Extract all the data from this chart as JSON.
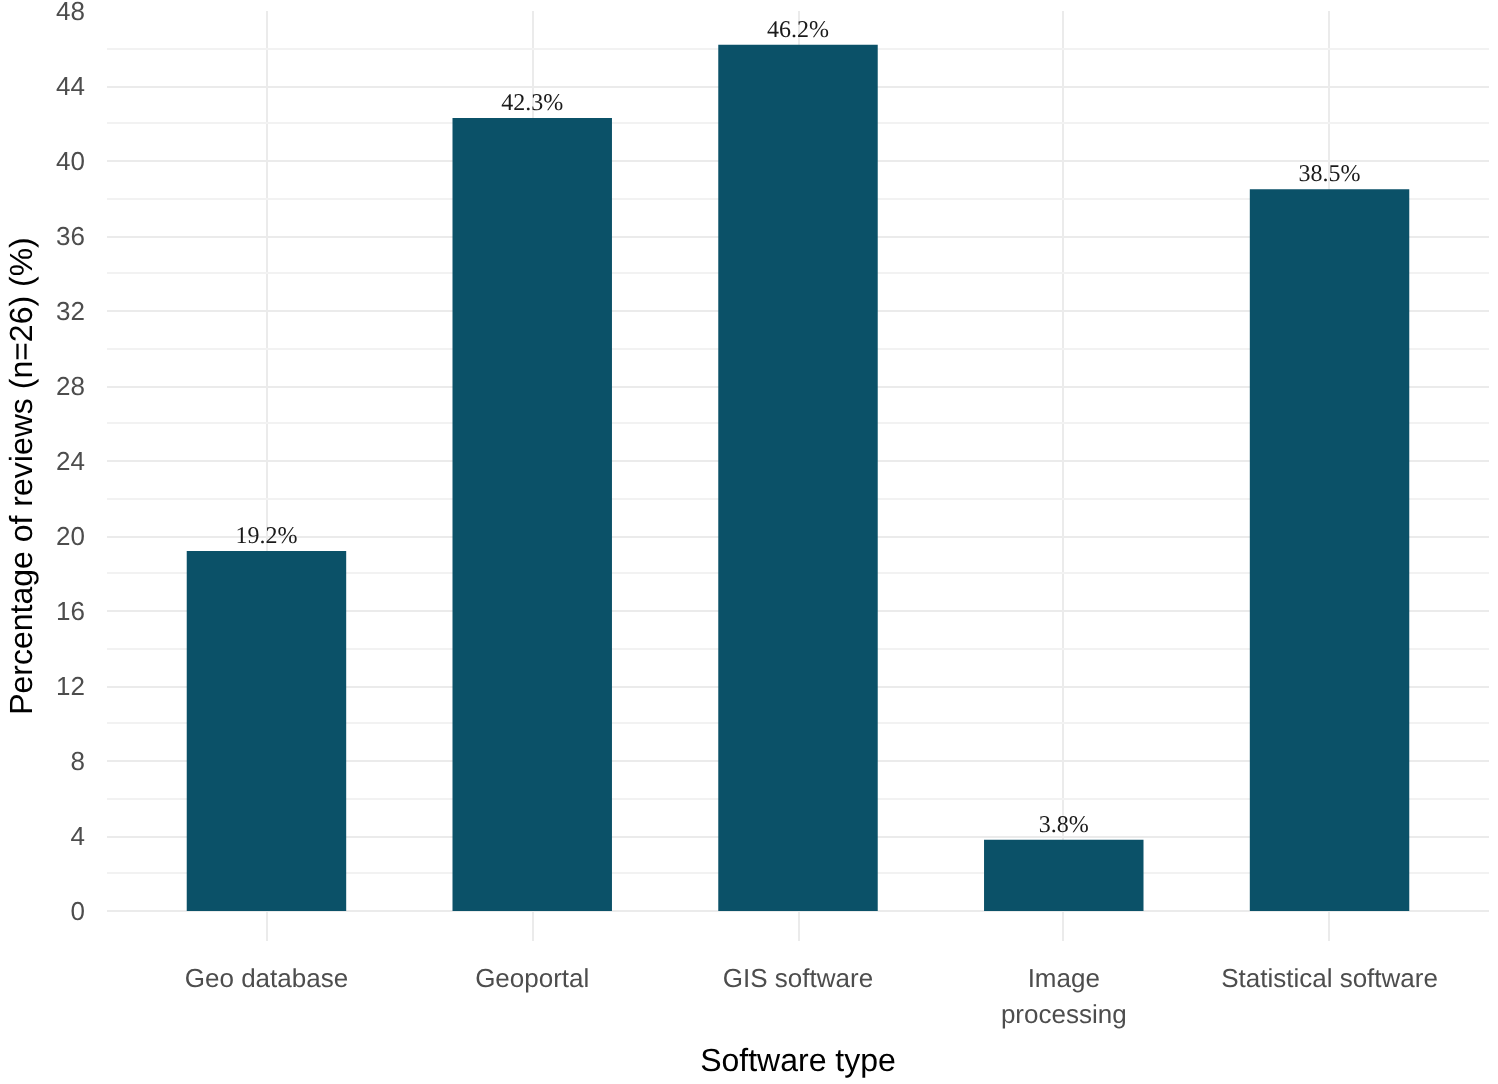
{
  "chart_data": {
    "type": "bar",
    "xlabel": "Software type",
    "ylabel": "Percentage of reviews (n=26) (%)",
    "categories": [
      "Geo database",
      "Geoportal",
      "GIS software",
      "Image\nprocessing",
      "Statistical software"
    ],
    "values": [
      19.2,
      42.3,
      46.2,
      3.8,
      38.5
    ],
    "value_labels": [
      "19.2%",
      "42.3%",
      "46.2%",
      "3.8%",
      "38.5%"
    ],
    "color": "#0b5168",
    "ylim": [
      -1.6,
      48
    ],
    "yticks": [
      0,
      4,
      8,
      12,
      16,
      20,
      24,
      28,
      32,
      36,
      40,
      44,
      48
    ],
    "grid": true
  }
}
